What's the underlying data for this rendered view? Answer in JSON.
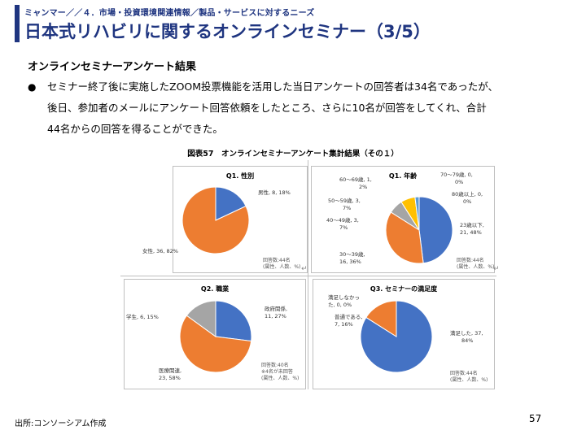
{
  "header": {
    "breadcrumb": "ミャンマー／／４．市場・投資環境関連情報／製品・サービスに対するニーズ",
    "title": "日本式リハビリに関するオンラインセミナー（3/5）"
  },
  "section_title": "オンラインセミナーアンケート結果",
  "body": {
    "bullet": "●",
    "lines": [
      "セミナー終了後に実施したZOOM投票機能を活用した当日アンケートの回答者は34名であったが、",
      "後日、参加者のメールにアンケート回答依頼をしたところ、さらに10名が回答をしてくれ、合計",
      "44名からの回答を得ることができた。"
    ]
  },
  "figure_title": "図表57　オンラインセミナーアンケート集計結果（その１）",
  "colors": {
    "blue": "#4472c4",
    "orange": "#ed7d31",
    "gray": "#a5a5a5",
    "yellow": "#ffc000",
    "navy": "#1f3580"
  },
  "chart_data": [
    {
      "type": "pie",
      "title": "Q1. 性別",
      "slices": [
        {
          "label": "男性, 8, 18%",
          "value": 18,
          "color": "#4472c4"
        },
        {
          "label": "女性, 36, 82%",
          "value": 82,
          "color": "#ed7d31"
        }
      ],
      "note": [
        "回答数:44名",
        "(属性、人数、%)"
      ]
    },
    {
      "type": "pie",
      "title": "Q1. 年齢",
      "slices": [
        {
          "label": "23歳以下, 21, 48%",
          "value": 48,
          "color": "#4472c4"
        },
        {
          "label": "30～39歳, 16, 36%",
          "value": 36,
          "color": "#ed7d31"
        },
        {
          "label": "40～49歳, 3, 7%",
          "value": 7,
          "color": "#a5a5a5"
        },
        {
          "label": "50～59歳, 3, 7%",
          "value": 7,
          "color": "#ffc000"
        },
        {
          "label": "60～69歳, 1, 2%",
          "value": 2,
          "color": "#5b9bd5"
        },
        {
          "label": "70～79歳, 0, 0%",
          "value": 0,
          "color": "#70ad47"
        },
        {
          "label": "80歳以上, 0, 0%",
          "value": 0,
          "color": "#264478"
        }
      ],
      "note": [
        "回答数:44名",
        "(属性、人数、%)"
      ]
    },
    {
      "type": "pie",
      "title": "Q2. 職業",
      "slices": [
        {
          "label": "政府関係, 11, 27%",
          "value": 27,
          "color": "#4472c4"
        },
        {
          "label": "医療関連, 23, 58%",
          "value": 58,
          "color": "#ed7d31"
        },
        {
          "label": "学生, 6, 15%",
          "value": 15,
          "color": "#a5a5a5"
        }
      ],
      "note": [
        "回答数:40名",
        "※4名が未回答",
        "(属性、人数、%)"
      ]
    },
    {
      "type": "pie",
      "title": "Q3. セミナーの満足度",
      "slices": [
        {
          "label": "満足した, 37, 84%",
          "value": 84,
          "color": "#4472c4"
        },
        {
          "label": "普通である, 7, 16%",
          "value": 16,
          "color": "#ed7d31"
        },
        {
          "label": "満足しなかった, 0, 0%",
          "value": 0,
          "color": "#a5a5a5"
        }
      ],
      "note": [
        "回答数:44名",
        "(属性、人数、%)"
      ]
    }
  ],
  "labels": {
    "q1": {
      "male": [
        "男性, 8, 18%"
      ],
      "female": [
        "女性, 36, 82%"
      ]
    },
    "age": {
      "a60": [
        "60～69歳, 1,",
        "2%"
      ],
      "a70": [
        "70～79歳, 0,",
        "0%"
      ],
      "a80": [
        "80歳以上, 0,",
        "0%"
      ],
      "a50": [
        "50～59歳, 3,",
        "7%"
      ],
      "a40": [
        "40～49歳, 3,",
        "7%"
      ],
      "a23": [
        "23歳以下,",
        "21, 48%"
      ],
      "a30": [
        "30～39歳,",
        "16, 36%"
      ]
    },
    "job": {
      "gov": [
        "政府関係,",
        "11, 27%"
      ],
      "student": [
        "学生, 6, 15%"
      ],
      "med": [
        "医療関連,",
        "23, 58%"
      ]
    },
    "sat": {
      "no": [
        "満足しなかっ",
        "た, 0, 0%"
      ],
      "normal": [
        "普通である,",
        "7, 16%"
      ],
      "yes": [
        "満足した, 37,",
        "84%"
      ]
    }
  },
  "return_mark": "↵",
  "source": "出所:コンソーシアム作成",
  "page_number": "57"
}
